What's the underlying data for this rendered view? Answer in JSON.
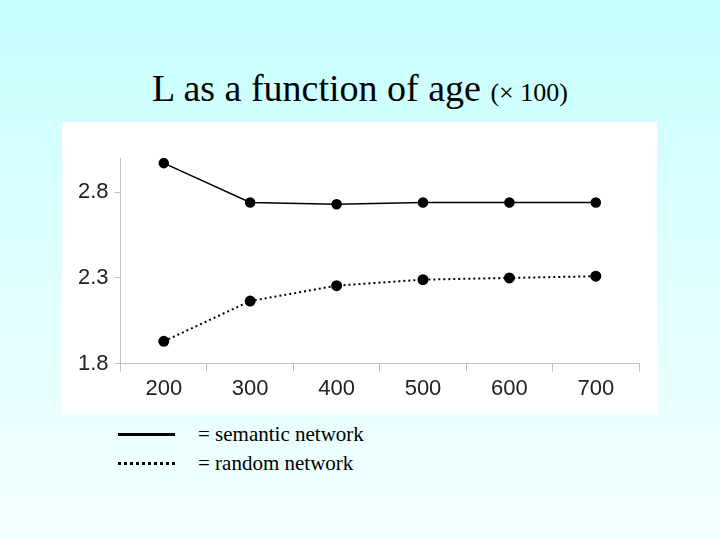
{
  "chart_data": {
    "type": "line",
    "title": "L as a function of age (× 100)",
    "categories": [
      "200",
      "300",
      "400",
      "500",
      "600",
      "700"
    ],
    "series": [
      {
        "name": "= semantic network",
        "color": "#000000",
        "values": [
          2.97,
          2.74,
          2.73,
          2.74,
          2.74,
          2.74
        ],
        "line_style": "solid",
        "marker": "circle"
      },
      {
        "name": "= random network",
        "color": "#000000",
        "values": [
          1.93,
          2.165,
          2.255,
          2.29,
          2.3,
          2.31
        ],
        "line_style": "dotted",
        "marker": "circle"
      }
    ],
    "ylim": [
      1.8,
      3.0
    ],
    "yticks": [
      1.8,
      2.3,
      2.8
    ],
    "grid": false,
    "legend": "bottom left"
  }
}
